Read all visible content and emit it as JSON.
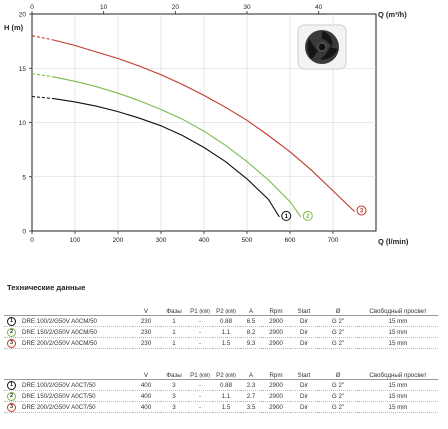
{
  "chart_data": {
    "type": "line",
    "title": "",
    "ylabel": "H (m)",
    "xlabel": "Q (l/min)",
    "x_top_label": "Q (m³/h)",
    "xlim": [
      0,
      800
    ],
    "ylim": [
      0,
      20
    ],
    "x_ticks": [
      "0",
      "100",
      "200",
      "300",
      "400",
      "500",
      "600",
      "700"
    ],
    "x_top_ticks": [
      "0",
      "10",
      "20",
      "30",
      "40"
    ],
    "y_ticks": [
      "0",
      "5",
      "10",
      "15",
      "20"
    ],
    "grid": true,
    "series": [
      {
        "marker": "1",
        "color": "#111111",
        "dashed_until": 50,
        "x": [
          0,
          50,
          100,
          150,
          200,
          250,
          300,
          350,
          400,
          450,
          500,
          550,
          575
        ],
        "y": [
          12.4,
          12.2,
          11.9,
          11.5,
          11.0,
          10.4,
          9.7,
          8.8,
          7.7,
          6.4,
          4.8,
          2.9,
          1.3
        ]
      },
      {
        "marker": "2",
        "color": "#7cbb4a",
        "dashed_until": 50,
        "x": [
          0,
          50,
          100,
          150,
          200,
          250,
          300,
          350,
          400,
          450,
          500,
          550,
          600,
          625
        ],
        "y": [
          14.5,
          14.2,
          13.8,
          13.3,
          12.7,
          12.0,
          11.2,
          10.3,
          9.2,
          7.9,
          6.4,
          4.7,
          2.7,
          1.3
        ]
      },
      {
        "marker": "3",
        "color": "#c0392b",
        "dashed_until": 50,
        "x": [
          0,
          50,
          100,
          150,
          200,
          250,
          300,
          350,
          400,
          450,
          500,
          550,
          600,
          650,
          700,
          750
        ],
        "y": [
          18.0,
          17.6,
          17.1,
          16.5,
          15.9,
          15.2,
          14.4,
          13.5,
          12.5,
          11.4,
          10.2,
          8.8,
          7.3,
          5.6,
          3.7,
          1.8
        ]
      }
    ]
  },
  "spec": {
    "title": "Технические данные",
    "headers": {
      "v": "V",
      "phases": "Фазы",
      "p1": "P1",
      "p1_unit": "(kW)",
      "p2": "P2",
      "p2_unit": "(kW)",
      "a": "A",
      "rpm": "Rpm",
      "start": "Start",
      "diameter": "Ø",
      "free_pass": "Свободный просвет"
    },
    "group1": [
      {
        "marker": "1",
        "model": "DRE 100/2/G50V A0CM/50",
        "v": "230",
        "phases": "1",
        "p1": "-",
        "p2": "0.88",
        "a": "6.5",
        "rpm": "2900",
        "start": "Dir",
        "d": "G 2\"",
        "pass": "15 mm"
      },
      {
        "marker": "2",
        "model": "DRE 150/2/G50V A0CM/50",
        "v": "230",
        "phases": "1",
        "p1": "-",
        "p2": "1.1",
        "a": "8.2",
        "rpm": "2900",
        "start": "Dir",
        "d": "G 2\"",
        "pass": "15 mm"
      },
      {
        "marker": "3",
        "model": "DRE 200/2/G50V A0CM/50",
        "v": "230",
        "phases": "1",
        "p1": "-",
        "p2": "1.5",
        "a": "9.3",
        "rpm": "2900",
        "start": "Dir",
        "d": "G 2\"",
        "pass": "15 mm"
      }
    ],
    "group2": [
      {
        "marker": "1",
        "model": "DRE 100/2/G50V A0CT/50",
        "v": "400",
        "phases": "3",
        "p1": "-",
        "p2": "0.88",
        "a": "2.3",
        "rpm": "2900",
        "start": "Dir",
        "d": "G 2\"",
        "pass": "15 mm"
      },
      {
        "marker": "2",
        "model": "DRE 150/2/G50V A0CT/50",
        "v": "400",
        "phases": "3",
        "p1": "-",
        "p2": "1.1",
        "a": "2.7",
        "rpm": "2900",
        "start": "Dir",
        "d": "G 2\"",
        "pass": "15 mm"
      },
      {
        "marker": "3",
        "model": "DRE 200/2/G50V A0CT/50",
        "v": "400",
        "phases": "3",
        "p1": "-",
        "p2": "1.5",
        "a": "3.5",
        "rpm": "2900",
        "start": "Dir",
        "d": "G 2\"",
        "pass": "15 mm"
      }
    ]
  }
}
